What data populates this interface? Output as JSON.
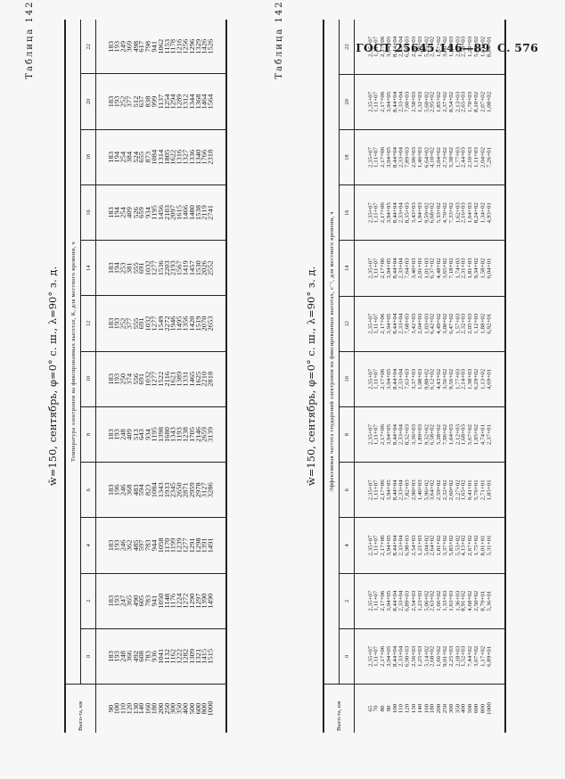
{
  "header": {
    "standard": "ГОСТ 25645.146—89",
    "page": "С. 576"
  },
  "tables": [
    {
      "name": "Таблица 1424",
      "subtitle": "w̄=150, сентябрь, φ=0° с. ш., λ=90° з. д.",
      "caption": "Температура электронов на фиксированных высотах, К, для местного времени, ч",
      "alt_header": "Высо-та, км",
      "hours": [
        "0",
        "2",
        "4",
        "6",
        "8",
        "10",
        "12",
        "14",
        "16",
        "18",
        "20",
        "22"
      ],
      "altitudes": [
        "90",
        "100",
        "110",
        "120",
        "130",
        "140",
        "160",
        "180",
        "200",
        "250",
        "300",
        "350",
        "400",
        "500",
        "600",
        "800",
        "1000"
      ],
      "columns": [
        [
          "183",
          "193",
          "248",
          "366",
          "492",
          "608",
          "783",
          "936",
          "1041",
          "1132",
          "1162",
          "1222",
          "1282",
          "1309",
          "1321",
          "1415",
          "1515"
        ],
        [
          "183",
          "193",
          "247",
          "365",
          "490",
          "605",
          "783",
          "941",
          "1050",
          "1148",
          "1176",
          "1224",
          "1272",
          "1290",
          "1297",
          "1390",
          "1490"
        ],
        [
          "183",
          "193",
          "246",
          "362",
          "485",
          "597",
          "783",
          "944",
          "1058",
          "1170",
          "1199",
          "1239",
          "1277",
          "1291",
          "1298",
          "1391",
          "1491"
        ],
        [
          "183",
          "196",
          "246",
          "368",
          "483",
          "594",
          "823",
          "1084",
          "1343",
          "1933",
          "2345",
          "2650",
          "2871",
          "2959",
          "2978",
          "3127",
          "3286"
        ],
        [
          "183",
          "193",
          "248",
          "409",
          "513",
          "643",
          "934",
          "1195",
          "1398",
          "1680",
          "1343",
          "1193",
          "1238",
          "1705",
          "2146",
          "2659",
          "3139"
        ],
        [
          "183",
          "193",
          "250",
          "374",
          "556",
          "691",
          "1032",
          "1277",
          "1522",
          "2116",
          "1621",
          "1389",
          "1331",
          "1465",
          "1625",
          "2210",
          "2818"
        ],
        [
          "183",
          "193",
          "252",
          "377",
          "555",
          "691",
          "1032",
          "1277",
          "1549",
          "2272",
          "1946",
          "1495",
          "1356",
          "1420",
          "1519",
          "2070",
          "2653"
        ],
        [
          "183",
          "194",
          "253",
          "381",
          "555",
          "691",
          "1032",
          "1277",
          "1536",
          "2203",
          "2193",
          "1567",
          "1419",
          "1457",
          "1530",
          "2026",
          "2552"
        ],
        [
          "183",
          "194",
          "254",
          "409",
          "526",
          "659",
          "934",
          "1195",
          "1456",
          "2103",
          "2097",
          "1615",
          "1466",
          "1480",
          "1538",
          "2119",
          "2741"
        ],
        [
          "183",
          "194",
          "254",
          "384",
          "524",
          "655",
          "873",
          "1084",
          "1314",
          "1805",
          "1622",
          "1316",
          "1327",
          "1336",
          "1340",
          "1766",
          "2318"
        ],
        [
          "183",
          "193",
          "252",
          "377",
          "512",
          "637",
          "838",
          "999",
          "1137",
          "1254",
          "1294",
          "1289",
          "1312",
          "1344",
          "1368",
          "1464",
          "1564"
        ],
        [
          "183",
          "193",
          "249",
          "369",
          "498",
          "617",
          "798",
          "941",
          "1062",
          "1153",
          "1178",
          "1216",
          "1256",
          "1296",
          "1329",
          "1426",
          "1526"
        ]
      ]
    },
    {
      "name": "Таблица 1425",
      "subtitle": "w̄=150, сентябрь, φ=0° с. ш., λ=90° з. д.",
      "caption": "Эффективная частота соударений электронов на фиксированных высотах, с⁻¹, для местного времени, ч",
      "alt_header": "Высо-та, км",
      "hours": [
        "0",
        "2",
        "4",
        "6",
        "8",
        "10",
        "12",
        "14",
        "16",
        "18",
        "20",
        "22"
      ],
      "altitudes": [
        "65",
        "70",
        "80",
        "90",
        "100",
        "110",
        "120",
        "130",
        "140",
        "160",
        "180",
        "200",
        "250",
        "300",
        "350",
        "400",
        "500",
        "600",
        "800",
        "1000"
      ],
      "columns": [
        [
          "2,35+07",
          "1,11+07",
          "2,17+06",
          "3,94+05",
          "8,44+04",
          "2,33+04",
          "6,90+03",
          "2,56+03",
          "1,25+03",
          "5,14+02",
          "2,68+02",
          "1,66+02",
          "9,01+02",
          "2,25+03",
          "2,18+03",
          "1,52+03",
          "7,44+02",
          "3,67+02",
          "1,17+02",
          "6,89+01"
        ],
        [
          "2,35+07",
          "1,11+07",
          "2,17+06",
          "3,94+05",
          "8,44+04",
          "2,33+04",
          "6,89+03",
          "2,54+03",
          "1,23+03",
          "5,06+02",
          "2,63+02",
          "1,66+02",
          "1,33+03",
          "1,63+03",
          "1,36+03",
          "8,91+02",
          "4,68+02",
          "2,50+02",
          "8,79+01",
          "5,36+01"
        ],
        [
          "2,35+07",
          "1,11+07",
          "2,17+06",
          "3,94+05",
          "8,44+04",
          "2,33+04",
          "6,98+03",
          "2,54+03",
          "1,21+03",
          "5,04+02",
          "2,64+02",
          "1,81+02",
          "3,37+02",
          "5,83+02",
          "5,53+02",
          "4,13+02",
          "2,67+02",
          "1,75+02",
          "8,01+01",
          "5,31+01"
        ],
        [
          "2,35+07",
          "1,11+07",
          "2,17+06",
          "3,94+05",
          "8,44+04",
          "2,33+04",
          "7,82+03",
          "2,90+03",
          "1,40+03",
          "5,96+02",
          "3,64+02",
          "2,59+02",
          "2,32+02",
          "2,60+02",
          "2,27+02",
          "1,65+02",
          "9,41+01",
          "5,76+01",
          "2,71+01",
          "1,85+01"
        ],
        [
          "2,35+07",
          "1,11+07",
          "2,17+06",
          "3,94+05",
          "8,44+04",
          "2,33+04",
          "8,32+03",
          "3,36+03",
          "1,89+03",
          "9,32+02",
          "6,58+02",
          "5,38+02",
          "7,96+02",
          "1,64+03",
          "2,12+03",
          "1,68+03",
          "5,67+02",
          "1,95+02",
          "4,74+01",
          "2,37+01"
        ],
        [
          "2,35+07",
          "1,11+07",
          "2,17+06",
          "3,94+05",
          "8,44+04",
          "2,33+04",
          "7,63+03",
          "3,37+03",
          "1,98+03",
          "9,88+02",
          "6,12+02",
          "4,43+02",
          "3,56+02",
          "9,56+02",
          "1,77+03",
          "2,14+03",
          "1,38+03",
          "6,29+02",
          "1,13+02",
          "4,69+01"
        ],
        [
          "2,35+07",
          "1,11+07",
          "2,17+06",
          "3,94+05",
          "8,44+04",
          "2,33+04",
          "7,68+03",
          "3,42+03",
          "2,04+03",
          "1,03+03",
          "6,42+02",
          "4,49+02",
          "3,00+02",
          "6,47+02",
          "1,57+03",
          "2,32+03",
          "2,05+03",
          "1,12+03",
          "1,88+02",
          "6,92+01"
        ],
        [
          "2,35+07",
          "1,11+07",
          "2,17+06",
          "3,94+05",
          "8,44+04",
          "2,33+04",
          "7,64+03",
          "3,40+03",
          "2,01+03",
          "1,01+03",
          "6,37+02",
          "4,48+02",
          "3,65+02",
          "7,18+02",
          "1,74+03",
          "2,31+03",
          "1,81+03",
          "9,34+02",
          "1,58+02",
          "6,04+01"
        ],
        [
          "2,35+07",
          "1,11+07",
          "2,17+06",
          "3,94+05",
          "8,44+04",
          "2,33+04",
          "8,35+03",
          "3,43+03",
          "1,94+03",
          "9,59+02",
          "6,68+02",
          "5,33+02",
          "4,70+02",
          "7,33+02",
          "1,62+03",
          "2,16+03",
          "1,64+03",
          "8,24+02",
          "1,34+02",
          "4,93+01"
        ],
        [
          "2,35+07",
          "1,11+07",
          "2,17+06",
          "3,94+05",
          "8,44+04",
          "2,33+04",
          "7,89+03",
          "2,96+03",
          "1,46+03",
          "6,64+02",
          "4,10+02",
          "3,04+02",
          "2,73+02",
          "5,38+02",
          "1,77+03",
          "2,44+03",
          "2,10+03",
          "1,11+03",
          "2,04+02",
          "7,26+01"
        ],
        [
          "2,35+07",
          "1,11+07",
          "2,17+06",
          "3,94+05",
          "8,44+04",
          "2,33+04",
          "7,00+03",
          "2,58+03",
          "1,32+03",
          "5,60+02",
          "2,95+02",
          "1,85+02",
          "2,37+02",
          "8,54+02",
          "2,13+03",
          "2,65+03",
          "1,70+03",
          "8,10+02",
          "2,07+02",
          "1,08+02"
        ],
        [
          "2,35+07",
          "1,11+07",
          "2,17+06",
          "3,94+05",
          "8,44+04",
          "2,33+04",
          "6,99+03",
          "2,56+03",
          "1,26+03",
          "5,25+02",
          "2,72+02",
          "1,67+02",
          "3,00+02",
          "1,72+03",
          "2,83+03",
          "2,58+03",
          "1,29+03",
          "5,85+02",
          "1,61+02",
          "8,84+01"
        ]
      ]
    }
  ]
}
